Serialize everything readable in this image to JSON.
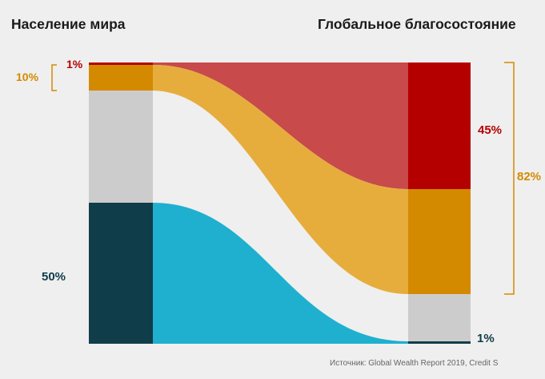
{
  "titles": {
    "left": "Население мира",
    "right": "Глобальное благосостояние"
  },
  "labels": {
    "top_1pct": "1%",
    "top_10pct": "10%",
    "bottom_50pct": "50%",
    "wealth_45pct": "45%",
    "wealth_82pct": "82%",
    "wealth_1pct": "1%"
  },
  "source": "Источник: Global Wealth Report 2019, Credit S",
  "colors": {
    "top1": "#b50000",
    "top1_flow": "#c84a4a",
    "top10": "#d48a00",
    "top10_flow": "#e6ad3d",
    "middle": "#cccccc",
    "bottom50_bar": "#0f3d4a",
    "bottom50_flow": "#1fb0cf",
    "bottom50_wealth": "#0f3d4a",
    "label_red": "#b50000",
    "label_orange": "#d48a00",
    "label_teal": "#0f3d4a",
    "bracket": "#d48a00",
    "background": "#efefef"
  },
  "chart_data": {
    "type": "sankey",
    "left_axis": "Население мира",
    "right_axis": "Глобальное благосостояние",
    "groups": [
      {
        "label": "1%",
        "population_pct": 1,
        "wealth_pct": 45
      },
      {
        "label": "10%",
        "population_pct": 10,
        "wealth_pct": 82
      },
      {
        "label": "50%",
        "population_pct": 50,
        "wealth_pct": 1
      }
    ]
  }
}
